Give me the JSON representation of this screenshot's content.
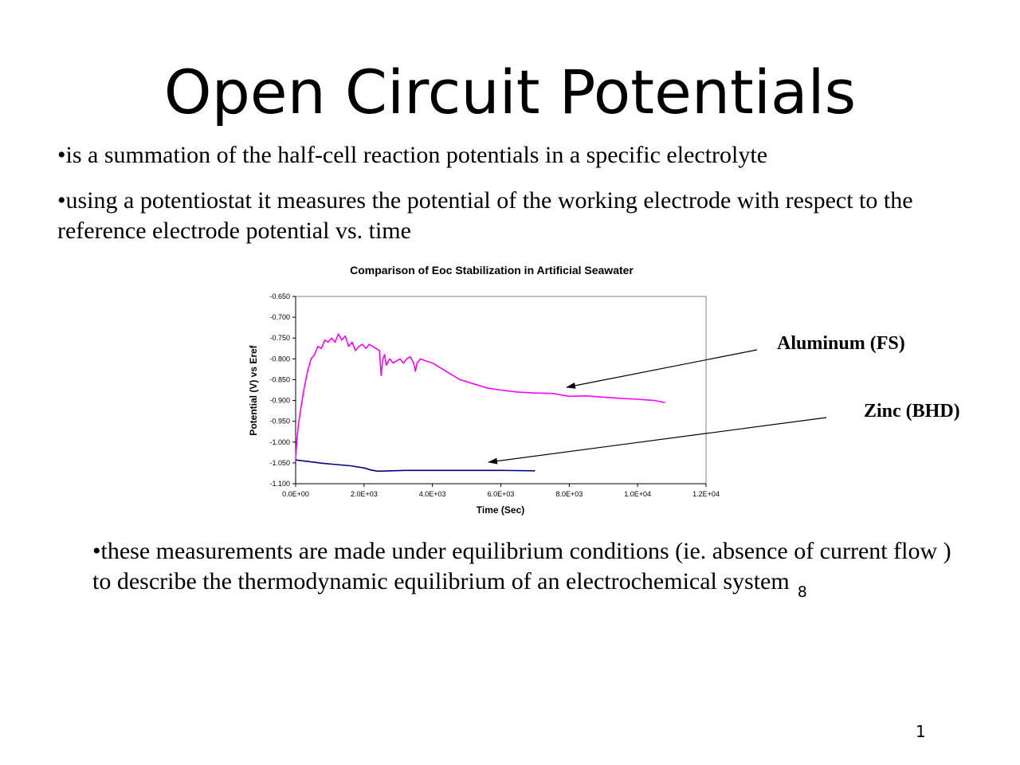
{
  "slide": {
    "title": "Open Circuit Potentials",
    "bullets": [
      "•is a summation of the half-cell reaction potentials in a specific electrolyte",
      "•using a potentiostat it measures the potential of the working electrode with respect to the reference electrode potential vs. time",
      "•these measurements are made under equilibrium conditions (ie. absence of current flow ) to describe the thermodynamic equilibrium of an electrochemical system"
    ],
    "reference": "8",
    "page_number": "1"
  },
  "annotations": {
    "aluminum": "Aluminum (FS)",
    "zinc": "Zinc (BHD)"
  },
  "chart_data": {
    "type": "line",
    "title": "Comparison of Eoc Stabilization in Artificial Seawater",
    "xlabel": "Time (Sec)",
    "ylabel": "Potential (V) vs Eref",
    "xlim": [
      0,
      12000
    ],
    "ylim": [
      -1.1,
      -0.65
    ],
    "x_ticks": [
      0,
      2000,
      4000,
      6000,
      8000,
      10000,
      12000
    ],
    "x_tick_labels": [
      "0.0E+00",
      "2.0E+03",
      "4.0E+03",
      "6.0E+03",
      "8.0E+03",
      "1.0E+04",
      "1.2E+04"
    ],
    "y_ticks": [
      -0.65,
      -0.7,
      -0.75,
      -0.8,
      -0.85,
      -0.9,
      -0.95,
      -1.0,
      -1.05,
      -1.1
    ],
    "y_tick_labels": [
      "-0.650",
      "-0.700",
      "-0.750",
      "-0.800",
      "-0.850",
      "-0.900",
      "-0.950",
      "-1.000",
      "-1.050",
      "-1.100"
    ],
    "grid": false,
    "series": [
      {
        "color": "#ff00ff",
        "x": [
          0,
          30,
          80,
          150,
          250,
          350,
          450,
          550,
          650,
          750,
          850,
          950,
          1050,
          1150,
          1250,
          1350,
          1450,
          1550,
          1650,
          1750,
          1850,
          1950,
          2050,
          2150,
          2250,
          2350,
          2450,
          2500,
          2550,
          2600,
          2650,
          2750,
          2850,
          2950,
          3050,
          3150,
          3250,
          3350,
          3450,
          3500,
          3550,
          3650,
          3800,
          4000,
          4200,
          4500,
          4800,
          5200,
          5600,
          6000,
          6500,
          7000,
          7500,
          8000,
          8500,
          9000,
          9500,
          10000,
          10500,
          10800
        ],
        "values": [
          -1.045,
          -1.0,
          -0.96,
          -0.92,
          -0.87,
          -0.83,
          -0.8,
          -0.79,
          -0.77,
          -0.775,
          -0.755,
          -0.76,
          -0.75,
          -0.76,
          -0.74,
          -0.755,
          -0.745,
          -0.77,
          -0.76,
          -0.78,
          -0.77,
          -0.765,
          -0.775,
          -0.765,
          -0.77,
          -0.775,
          -0.78,
          -0.84,
          -0.8,
          -0.79,
          -0.815,
          -0.8,
          -0.81,
          -0.805,
          -0.8,
          -0.81,
          -0.8,
          -0.795,
          -0.81,
          -0.83,
          -0.81,
          -0.8,
          -0.805,
          -0.81,
          -0.82,
          -0.835,
          -0.85,
          -0.86,
          -0.87,
          -0.875,
          -0.88,
          -0.882,
          -0.883,
          -0.89,
          -0.889,
          -0.892,
          -0.895,
          -0.897,
          -0.9,
          -0.905
        ]
      },
      {
        "color": "#000080",
        "x": [
          0,
          400,
          800,
          1200,
          1600,
          2000,
          2200,
          2400,
          2800,
          3200,
          4000,
          5000,
          6000,
          7000
        ],
        "values": [
          -1.043,
          -1.047,
          -1.051,
          -1.054,
          -1.057,
          -1.062,
          -1.067,
          -1.07,
          -1.069,
          -1.068,
          -1.068,
          -1.068,
          -1.068,
          -1.069
        ]
      }
    ]
  }
}
